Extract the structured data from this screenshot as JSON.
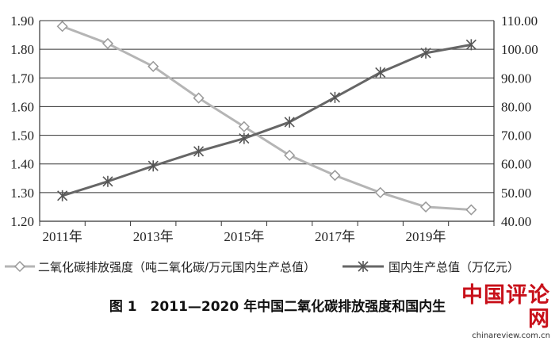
{
  "chart_data": {
    "type": "line",
    "x": [
      "2011",
      "2012",
      "2013",
      "2014",
      "2015",
      "2016",
      "2017",
      "2018",
      "2019",
      "2020"
    ],
    "x_tick_labels": [
      "2011年",
      "2013年",
      "2015年",
      "2017年",
      "2019年"
    ],
    "series": [
      {
        "name": "二氧化碳排放强度（吨二氧化碳/万元国内生产总值）",
        "axis": "left",
        "marker": "diamond",
        "color": "#b5b5b5",
        "values": [
          1.88,
          1.82,
          1.74,
          1.63,
          1.53,
          1.43,
          1.36,
          1.3,
          1.25,
          1.24
        ]
      },
      {
        "name": "国内生产总值（万亿元）",
        "axis": "right",
        "marker": "asterisk",
        "color": "#666666",
        "values": [
          48.9,
          53.9,
          59.3,
          64.4,
          68.9,
          74.6,
          83.2,
          91.9,
          98.7,
          101.6
        ]
      }
    ],
    "y_left_lim": [
      1.2,
      1.9
    ],
    "y_left_ticks": [
      "1.20",
      "1.30",
      "1.40",
      "1.50",
      "1.60",
      "1.70",
      "1.80",
      "1.90"
    ],
    "y_right_lim": [
      40,
      110
    ],
    "y_right_ticks": [
      "40.00",
      "50.00",
      "60.00",
      "70.00",
      "80.00",
      "90.00",
      "100.00",
      "110.00"
    ],
    "grid": "horizontal",
    "legend_position": "bottom"
  },
  "caption": "图 1　2011—2020 年中国二氧化碳排放强度和国内生",
  "watermark": {
    "text": "中国评论网",
    "url": "chinareview.com.cn"
  }
}
